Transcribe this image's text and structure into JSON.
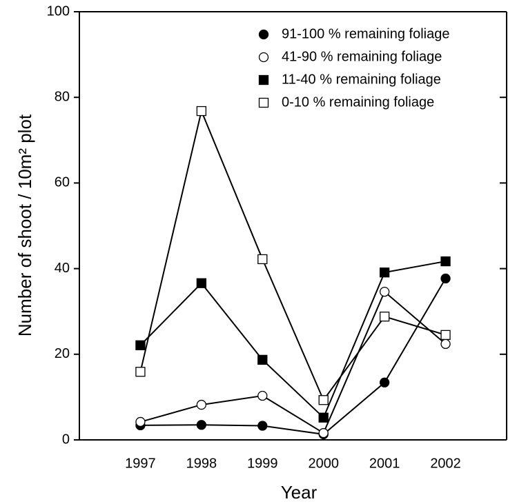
{
  "chart_data": {
    "type": "line",
    "x_label": "Year",
    "y_label": "Number of shoot / 10m² plot",
    "x": [
      1997,
      1998,
      1999,
      2000,
      2001,
      2002
    ],
    "xlim": [
      1996,
      2003
    ],
    "xticks": [
      1997,
      1998,
      1999,
      2000,
      2001,
      2002
    ],
    "ylim": [
      0,
      100
    ],
    "yticks": [
      0,
      20,
      40,
      60,
      80,
      100
    ],
    "legend": "upper right",
    "series": [
      {
        "name": "91-100 % remaining foliage",
        "color": "#000000",
        "marker": "circle",
        "filled": true,
        "values": [
          3.4,
          3.5,
          3.3,
          1.3,
          13.4,
          37.7
        ]
      },
      {
        "name": "41-90 % remaining foliage",
        "color": "#000000",
        "marker": "circle",
        "filled": false,
        "values": [
          4.2,
          8.2,
          10.3,
          1.6,
          34.6,
          22.4
        ]
      },
      {
        "name": "11-40 % remaining foliage",
        "color": "#000000",
        "marker": "square",
        "filled": true,
        "values": [
          22.1,
          36.6,
          18.7,
          5.2,
          39.1,
          41.7
        ]
      },
      {
        "name": "0-10 % remaining foliage",
        "color": "#000000",
        "marker": "square",
        "filled": false,
        "values": [
          15.9,
          76.8,
          42.2,
          9.3,
          28.8,
          24.5
        ]
      }
    ]
  }
}
